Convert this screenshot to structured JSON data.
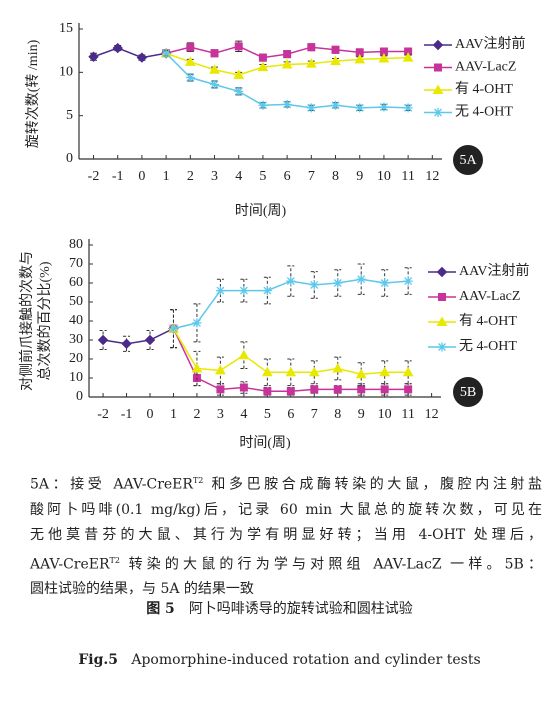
{
  "chart_data": [
    {
      "type": "line",
      "panel_label": "5A",
      "ylabel": "旋转次数(转 /min)",
      "xlabel": "时间(周)",
      "xlim": [
        -2.6,
        12.4
      ],
      "xticks": [
        -2,
        -1,
        0,
        1,
        2,
        3,
        4,
        5,
        6,
        7,
        8,
        9,
        10,
        11,
        12
      ],
      "ylim": [
        0,
        15
      ],
      "yticks": [
        0,
        5,
        10,
        15
      ],
      "series": [
        {
          "name": "AAV注射前",
          "color": "#4b2a8a",
          "marker": "diamond",
          "x": [
            -2,
            -1,
            0,
            1
          ],
          "values": [
            11.8,
            12.8,
            11.7,
            12.2
          ],
          "errors": [
            0.4,
            0.3,
            0.3,
            0.3
          ]
        },
        {
          "name": "AAV-LacZ",
          "color": "#c8339b",
          "marker": "square",
          "x": [
            1,
            2,
            3,
            4,
            5,
            6,
            7,
            8,
            9,
            10,
            11
          ],
          "values": [
            12.2,
            12.9,
            12.2,
            13.0,
            11.7,
            12.1,
            12.9,
            12.6,
            12.3,
            12.4,
            12.4
          ],
          "errors": [
            0.3,
            0.5,
            0.4,
            0.6,
            0.4,
            0.4,
            0.4,
            0.4,
            0.4,
            0.4,
            0.4
          ]
        },
        {
          "name": "有 4-OHT",
          "color": "#e8e800",
          "marker": "triangle",
          "x": [
            1,
            2,
            3,
            4,
            5,
            6,
            7,
            8,
            9,
            10,
            11
          ],
          "values": [
            12.2,
            11.2,
            10.3,
            9.7,
            10.6,
            10.9,
            11.0,
            11.3,
            11.5,
            11.6,
            11.7
          ],
          "errors": [
            0.3,
            0.3,
            0.3,
            0.3,
            0.3,
            0.3,
            0.3,
            0.3,
            0.3,
            0.3,
            0.3
          ]
        },
        {
          "name": "无 4-OHT",
          "color": "#5cc8ec",
          "marker": "star",
          "x": [
            1,
            2,
            3,
            4,
            5,
            6,
            7,
            8,
            9,
            10,
            11
          ],
          "values": [
            12.2,
            9.4,
            8.6,
            7.8,
            6.2,
            6.3,
            5.9,
            6.2,
            5.9,
            6.0,
            5.9
          ],
          "errors": [
            0.3,
            0.4,
            0.4,
            0.4,
            0.3,
            0.3,
            0.3,
            0.3,
            0.3,
            0.3,
            0.3
          ]
        }
      ]
    },
    {
      "type": "line",
      "panel_label": "5B",
      "ylabel": [
        "对侧前爪接触的次数与",
        "总次数的百分比(%)"
      ],
      "xlabel": "时间(周)",
      "xlim": [
        -2.6,
        12.4
      ],
      "xticks": [
        -2,
        -1,
        0,
        1,
        2,
        3,
        4,
        5,
        6,
        7,
        8,
        9,
        10,
        11,
        12
      ],
      "ylim": [
        0,
        80
      ],
      "yticks": [
        0,
        10,
        20,
        30,
        40,
        50,
        60,
        70,
        80
      ],
      "series": [
        {
          "name": "AAV注射前",
          "color": "#4b2a8a",
          "marker": "diamond",
          "x": [
            -2,
            -1,
            0,
            1
          ],
          "values": [
            30,
            28,
            30,
            36
          ],
          "errors": [
            5,
            4,
            5,
            10
          ]
        },
        {
          "name": "AAV-LacZ",
          "color": "#c8339b",
          "marker": "square",
          "x": [
            1,
            2,
            3,
            4,
            5,
            6,
            7,
            8,
            9,
            10,
            11
          ],
          "values": [
            36,
            10,
            4,
            5,
            3,
            3,
            4,
            4,
            4,
            4,
            4
          ],
          "errors": [
            10,
            4,
            3,
            3,
            2,
            2,
            2,
            2,
            3,
            3,
            3
          ]
        },
        {
          "name": "有 4-OHT",
          "color": "#e8e800",
          "marker": "triangle",
          "x": [
            1,
            2,
            3,
            4,
            5,
            6,
            7,
            8,
            9,
            10,
            11
          ],
          "values": [
            36,
            15,
            14,
            22,
            13,
            13,
            13,
            15,
            12,
            13,
            13
          ],
          "errors": [
            10,
            9,
            7,
            7,
            7,
            7,
            6,
            6,
            6,
            6,
            6
          ]
        },
        {
          "name": "无 4-OHT",
          "color": "#5cc8ec",
          "marker": "star",
          "x": [
            1,
            2,
            3,
            4,
            5,
            6,
            7,
            8,
            9,
            10,
            11
          ],
          "values": [
            36,
            39,
            56,
            56,
            56,
            61,
            59,
            60,
            62,
            60,
            61
          ],
          "errors": [
            10,
            10,
            6,
            6,
            7,
            8,
            7,
            7,
            8,
            7,
            7
          ]
        }
      ]
    }
  ],
  "caption": {
    "lines": [
      [
        "5A：接受 AAV-CreER",
        "T2",
        " 和多巴胺合成酶转染的大鼠，腹腔内注射盐"
      ],
      [
        "酸阿卜吗啡(0.1 mg/kg)后，记录 60 min 大鼠总的旋转次数，可见在"
      ],
      [
        "无他莫昔芬的大鼠、其行为学有明显好转；当用 4-OHT 处理后，"
      ],
      [
        "AAV-CreER",
        "T2",
        " 转染的大鼠的行为学与对照组 AAV-LacZ 一样。5B："
      ],
      [
        "圆柱试验的结果，与 5A 的结果一致"
      ]
    ]
  },
  "figure_title": {
    "label": "图 5",
    "text": "阿卜吗啡诱导的旋转试验和圆柱试验"
  },
  "figure_title_en": {
    "label": "Fig.5",
    "text": "Apomorphine-induced rotation and cylinder tests"
  }
}
